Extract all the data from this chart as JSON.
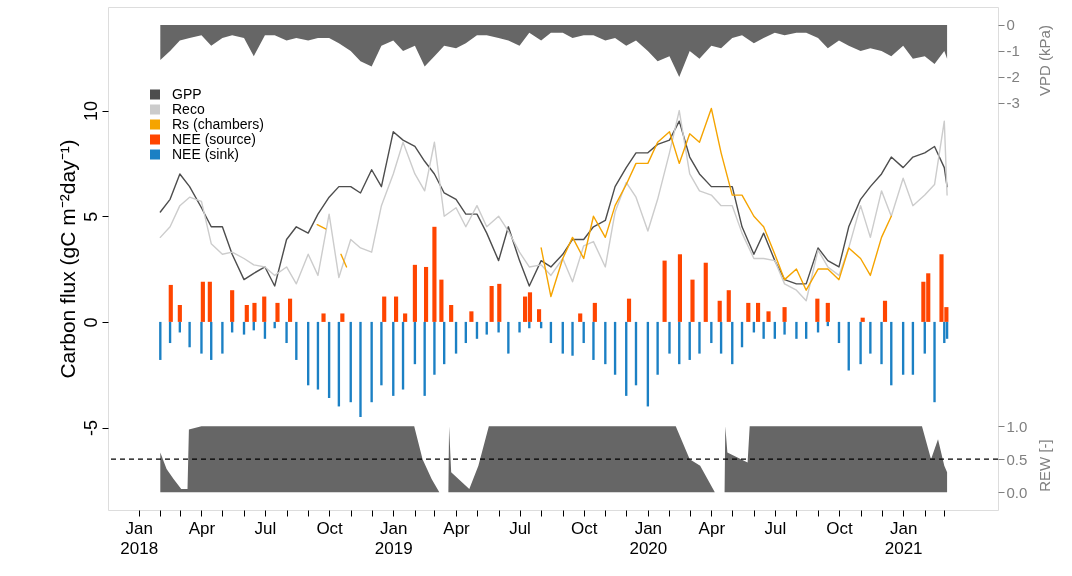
{
  "chart_data": {
    "type": "line",
    "ylabel": "Carbon flux (gC m⁻²day⁻¹)",
    "y2label": "VPD (kPa)",
    "y3label": "REW [-]",
    "xlim": [
      "2017-11-18",
      "2021-05-17"
    ],
    "xticks": [
      {
        "value": "2018-01-01",
        "label": "Jan\n2018"
      },
      {
        "value": "2018-02-01",
        "label": null
      },
      {
        "value": "2018-03-01",
        "label": null
      },
      {
        "value": "2018-04-01",
        "label": "Apr"
      },
      {
        "value": "2018-05-01",
        "label": null
      },
      {
        "value": "2018-06-01",
        "label": null
      },
      {
        "value": "2018-07-01",
        "label": "Jul"
      },
      {
        "value": "2018-08-01",
        "label": null
      },
      {
        "value": "2018-09-01",
        "label": null
      },
      {
        "value": "2018-10-01",
        "label": "Oct"
      },
      {
        "value": "2018-11-01",
        "label": null
      },
      {
        "value": "2018-12-01",
        "label": null
      },
      {
        "value": "2019-01-01",
        "label": "Jan\n2019"
      },
      {
        "value": "2019-02-01",
        "label": null
      },
      {
        "value": "2019-03-01",
        "label": null
      },
      {
        "value": "2019-04-01",
        "label": "Apr"
      },
      {
        "value": "2019-05-01",
        "label": null
      },
      {
        "value": "2019-06-01",
        "label": null
      },
      {
        "value": "2019-07-01",
        "label": "Jul"
      },
      {
        "value": "2019-08-01",
        "label": null
      },
      {
        "value": "2019-09-01",
        "label": null
      },
      {
        "value": "2019-10-01",
        "label": "Oct"
      },
      {
        "value": "2019-11-01",
        "label": null
      },
      {
        "value": "2019-12-01",
        "label": null
      },
      {
        "value": "2020-01-01",
        "label": "Jan\n2020"
      },
      {
        "value": "2020-02-01",
        "label": null
      },
      {
        "value": "2020-03-01",
        "label": null
      },
      {
        "value": "2020-04-01",
        "label": "Apr"
      },
      {
        "value": "2020-05-01",
        "label": null
      },
      {
        "value": "2020-06-01",
        "label": null
      },
      {
        "value": "2020-07-01",
        "label": "Jul"
      },
      {
        "value": "2020-08-01",
        "label": null
      },
      {
        "value": "2020-09-01",
        "label": null
      },
      {
        "value": "2020-10-01",
        "label": "Oct"
      },
      {
        "value": "2020-11-01",
        "label": null
      },
      {
        "value": "2020-12-01",
        "label": null
      },
      {
        "value": "2021-01-01",
        "label": "Jan\n2021"
      },
      {
        "value": "2021-02-01",
        "label": null
      },
      {
        "value": "2021-03-01",
        "label": null
      }
    ],
    "ylim": [
      -8.9,
      14.9
    ],
    "yticks": [
      -5,
      0,
      5,
      10
    ],
    "y2lim": [
      -18.65,
      0.69
    ],
    "y2ticks": [
      0,
      -1,
      -2,
      -3
    ],
    "y3lim": [
      -0.27,
      7.35
    ],
    "y3ticks": [
      {
        "value": 0,
        "label": "0.0"
      },
      {
        "value": 0.5,
        "label": "0.5"
      },
      {
        "value": 1,
        "label": "1.0"
      }
    ],
    "legend": "top left",
    "x": [
      "2018-02-01",
      "2018-02-15",
      "2018-03-01",
      "2018-03-15",
      "2018-04-01",
      "2018-04-15",
      "2018-05-01",
      "2018-05-15",
      "2018-06-01",
      "2018-06-15",
      "2018-07-01",
      "2018-07-15",
      "2018-08-01",
      "2018-08-15",
      "2018-09-01",
      "2018-09-15",
      "2018-10-01",
      "2018-10-15",
      "2018-11-01",
      "2018-11-15",
      "2018-12-01",
      "2018-12-15",
      "2019-01-01",
      "2019-01-15",
      "2019-02-01",
      "2019-02-15",
      "2019-03-01",
      "2019-03-15",
      "2019-04-01",
      "2019-04-15",
      "2019-05-01",
      "2019-05-15",
      "2019-06-01",
      "2019-06-15",
      "2019-07-01",
      "2019-07-15",
      "2019-08-01",
      "2019-08-15",
      "2019-09-01",
      "2019-09-15",
      "2019-10-01",
      "2019-10-15",
      "2019-11-01",
      "2019-11-15",
      "2019-12-01",
      "2019-12-15",
      "2020-01-01",
      "2020-01-15",
      "2020-02-01",
      "2020-02-15",
      "2020-03-01",
      "2020-03-15",
      "2020-04-01",
      "2020-04-15",
      "2020-05-01",
      "2020-05-15",
      "2020-06-01",
      "2020-06-15",
      "2020-07-01",
      "2020-07-15",
      "2020-08-01",
      "2020-08-15",
      "2020-09-01",
      "2020-09-15",
      "2020-10-01",
      "2020-10-15",
      "2020-11-01",
      "2020-11-15",
      "2020-12-01",
      "2020-12-15",
      "2021-01-01",
      "2021-01-15",
      "2021-02-01",
      "2021-02-15",
      "2021-03-01",
      "2021-03-05"
    ],
    "series": [
      {
        "name": "GPP",
        "color": "#4d4d4d",
        "values": [
          5.2,
          5.8,
          7.0,
          6.4,
          5.4,
          4.5,
          4.5,
          3.2,
          2.0,
          2.3,
          2.6,
          1.7,
          3.9,
          4.5,
          4.2,
          5.1,
          5.9,
          6.4,
          6.4,
          6.1,
          7.2,
          6.4,
          9.0,
          8.6,
          8.3,
          7.6,
          7.0,
          6.1,
          5.8,
          5.1,
          5.1,
          4.2,
          2.9,
          4.5,
          2.9,
          1.7,
          2.9,
          2.6,
          3.2,
          3.9,
          3.9,
          4.5,
          4.8,
          6.4,
          7.3,
          8.0,
          8.0,
          8.4,
          8.6,
          9.5,
          7.8,
          7.0,
          6.4,
          6.4,
          6.4,
          4.5,
          3.2,
          4.2,
          2.9,
          2.0,
          1.8,
          1.8,
          3.5,
          2.9,
          2.6,
          4.5,
          5.8,
          6.4,
          7.0,
          7.8,
          7.3,
          7.8,
          8.0,
          8.3,
          7.3,
          6.4
        ]
      },
      {
        "name": "Reco",
        "color": "#cccccc",
        "values": [
          4.0,
          4.5,
          5.5,
          5.9,
          5.7,
          3.7,
          3.2,
          3.3,
          3.0,
          2.7,
          2.6,
          2.2,
          2.6,
          1.8,
          3.2,
          2.2,
          5.1,
          2.1,
          3.9,
          3.5,
          3.3,
          5.5,
          7.0,
          8.5,
          7.0,
          6.2,
          8.5,
          5.0,
          5.4,
          4.5,
          5.5,
          4.5,
          5.0,
          4.3,
          3.3,
          2.6,
          2.7,
          2.2,
          3.0,
          1.9,
          3.6,
          3.8,
          2.6,
          5.2,
          6.6,
          5.9,
          4.3,
          5.8,
          8.0,
          10.0,
          7.0,
          6.2,
          6.0,
          5.5,
          5.5,
          4.2,
          3.0,
          3.0,
          2.9,
          1.8,
          1.5,
          1.0,
          3.4,
          2.6,
          2.2,
          3.5,
          5.5,
          4.0,
          6.2,
          5.0,
          6.8,
          5.5,
          6.0,
          6.5,
          9.5,
          6.0
        ]
      },
      {
        "name": "Rs (chambers)",
        "color": "#f5a400",
        "x": [
          "2018-09-14",
          "2018-09-26",
          "2018-10-05",
          "2018-10-18",
          "2018-10-26",
          "2019-02-01",
          "2019-08-01",
          "2019-08-15",
          "2019-09-01",
          "2019-09-15",
          "2019-10-01",
          "2019-10-15",
          "2019-11-01",
          "2019-11-15",
          "2019-12-01",
          "2019-12-15",
          "2020-01-01",
          "2020-01-15",
          "2020-02-01",
          "2020-02-15",
          "2020-03-01",
          "2020-03-15",
          "2020-04-01",
          "2020-04-15",
          "2020-05-01",
          "2020-05-15",
          "2020-06-01",
          "2020-06-15",
          "2020-07-01",
          "2020-07-15",
          "2020-08-01",
          "2020-08-15",
          "2020-09-01",
          "2020-09-15",
          "2020-10-01",
          "2020-10-15",
          "2020-11-01",
          "2020-11-15",
          "2020-12-01",
          "2020-12-15"
        ],
        "values": [
          4.6,
          4.4,
          null,
          3.2,
          2.6,
          null,
          3.5,
          1.2,
          3.0,
          4.0,
          3.0,
          5.0,
          4.0,
          5.5,
          6.5,
          7.5,
          7.5,
          8.5,
          9.0,
          7.5,
          8.9,
          8.5,
          10.1,
          8.0,
          6.0,
          6.0,
          5.0,
          4.5,
          3.2,
          2.0,
          2.5,
          1.5,
          2.5,
          2.5,
          2.0,
          3.5,
          3.0,
          2.2,
          4.0,
          5.0
        ]
      },
      {
        "name": "NEE (source)",
        "color": "#ff4500",
        "type": "bar",
        "x": [
          "2018-02-16",
          "2018-03-01",
          "2018-04-03",
          "2018-04-13",
          "2018-05-15",
          "2018-06-05",
          "2018-06-16",
          "2018-06-30",
          "2018-07-19",
          "2018-08-06",
          "2018-09-23",
          "2018-10-20",
          "2018-12-19",
          "2019-01-05",
          "2019-01-18",
          "2019-02-01",
          "2019-02-17",
          "2019-03-01",
          "2019-03-11",
          "2019-03-25",
          "2019-04-23",
          "2019-05-22",
          "2019-06-02",
          "2019-07-09",
          "2019-07-16",
          "2019-07-29",
          "2019-09-26",
          "2019-10-17",
          "2019-12-05",
          "2020-01-25",
          "2020-02-16",
          "2020-03-05",
          "2020-03-24",
          "2020-04-13",
          "2020-04-26",
          "2020-05-24",
          "2020-06-07",
          "2020-06-22",
          "2020-07-15",
          "2020-08-31",
          "2020-09-15",
          "2020-11-04",
          "2020-12-06",
          "2021-01-30",
          "2021-02-06",
          "2021-02-25",
          "2021-03-04"
        ],
        "values": [
          1.75,
          0.8,
          1.9,
          1.9,
          1.5,
          0.8,
          0.9,
          1.2,
          0.9,
          1.1,
          0.4,
          0.4,
          1.2,
          1.2,
          0.4,
          2.7,
          2.6,
          4.5,
          2.0,
          0.8,
          0.5,
          1.7,
          1.8,
          1.2,
          1.4,
          0.6,
          0.4,
          0.9,
          1.1,
          2.9,
          3.2,
          2.0,
          2.8,
          1.0,
          1.5,
          0.9,
          0.9,
          0.5,
          0.7,
          1.1,
          0.9,
          0.2,
          1.0,
          1.9,
          2.3,
          3.2,
          0.7
        ]
      },
      {
        "name": "NEE (sink)",
        "color": "#1b80c4",
        "type": "bar",
        "values": [
          -1.8,
          -1.0,
          -0.5,
          -1.2,
          -1.5,
          -1.8,
          -1.5,
          -0.5,
          -0.6,
          -0.4,
          -0.8,
          -0.3,
          -1.0,
          -1.8,
          -3.0,
          -3.2,
          -3.6,
          -4.0,
          -3.8,
          -4.5,
          -3.8,
          -3.0,
          -3.5,
          -3.2,
          -2.0,
          -3.5,
          -2.5,
          -2.0,
          -1.5,
          -1.0,
          -0.8,
          -0.6,
          -0.5,
          -1.5,
          -0.5,
          -0.3,
          -0.3,
          -1.0,
          -1.5,
          -1.6,
          -1.0,
          -1.8,
          -2.0,
          -2.5,
          -3.5,
          -3.0,
          -4.0,
          -2.5,
          -1.5,
          -2.0,
          -1.8,
          -1.5,
          -1.0,
          -1.5,
          -2.0,
          -1.2,
          -0.5,
          -0.8,
          -0.8,
          -0.6,
          -0.8,
          -0.8,
          -0.5,
          -0.2,
          -1.0,
          -2.3,
          -2.0,
          -1.5,
          -2.0,
          -3.0,
          -2.5,
          -2.5,
          -1.5,
          -3.8,
          -1.0,
          -0.8
        ]
      },
      {
        "color": "#666666",
        "type": "area",
        "axis": "y2",
        "values": [
          -1.35,
          -1.0,
          -0.6,
          -0.5,
          -0.4,
          -0.8,
          -0.5,
          -0.4,
          -0.5,
          -1.2,
          -0.4,
          -0.4,
          -0.6,
          -0.5,
          -0.6,
          -0.5,
          -0.5,
          -0.7,
          -1.0,
          -1.4,
          -1.6,
          -0.8,
          -0.6,
          -1.0,
          -0.8,
          -1.6,
          -1.2,
          -0.8,
          -0.9,
          -0.7,
          -0.4,
          -0.4,
          -0.5,
          -0.6,
          -0.8,
          -0.3,
          -0.6,
          -0.3,
          -0.3,
          -0.5,
          -0.4,
          -0.4,
          -0.6,
          -0.5,
          -0.8,
          -0.6,
          -1.0,
          -1.4,
          -1.2,
          -2.0,
          -1.0,
          -1.3,
          -0.8,
          -0.9,
          -0.5,
          -0.4,
          -0.7,
          -0.5,
          -0.3,
          -0.4,
          -0.3,
          -0.3,
          -0.5,
          -0.9,
          -0.6,
          -0.8,
          -1.0,
          -0.9,
          -1.0,
          -1.2,
          -0.8,
          -1.3,
          -1.2,
          -1.5,
          -1.0,
          -1.3
        ]
      },
      {
        "color": "#666666",
        "type": "area",
        "axis": "y3",
        "x": [
          "2018-02-01",
          "2018-02-10",
          "2018-02-20",
          "2018-03-03",
          "2018-03-12",
          "2018-03-14",
          "2018-04-01",
          "2019-01-31",
          "2019-02-12",
          "2019-02-25",
          "2019-03-08",
          "2019-03-21",
          "2019-03-22",
          "2019-03-25",
          "2019-04-20",
          "2019-05-03",
          "2019-05-18",
          "2020-02-10",
          "2020-03-01",
          "2020-03-16",
          "2020-04-06",
          "2020-04-20",
          "2020-04-21",
          "2020-04-24",
          "2020-05-23",
          "2020-05-26",
          "2021-01-28",
          "2021-02-10",
          "2021-02-20",
          "2021-03-01",
          "2021-03-05"
        ],
        "values": [
          0.6,
          0.35,
          0.2,
          0.05,
          0.05,
          0.95,
          1.0,
          1.0,
          0.5,
          0.2,
          0.0,
          0.0,
          1.0,
          0.3,
          0.05,
          0.4,
          1.0,
          1.0,
          0.5,
          0.4,
          0.0,
          0.0,
          1.0,
          0.6,
          0.45,
          1.0,
          1.0,
          0.5,
          0.8,
          0.4,
          0.3
        ]
      }
    ],
    "ref_lines": [
      {
        "axis": "y3",
        "value": 0.5,
        "color": "#000000",
        "line_style": "dashed"
      }
    ]
  }
}
